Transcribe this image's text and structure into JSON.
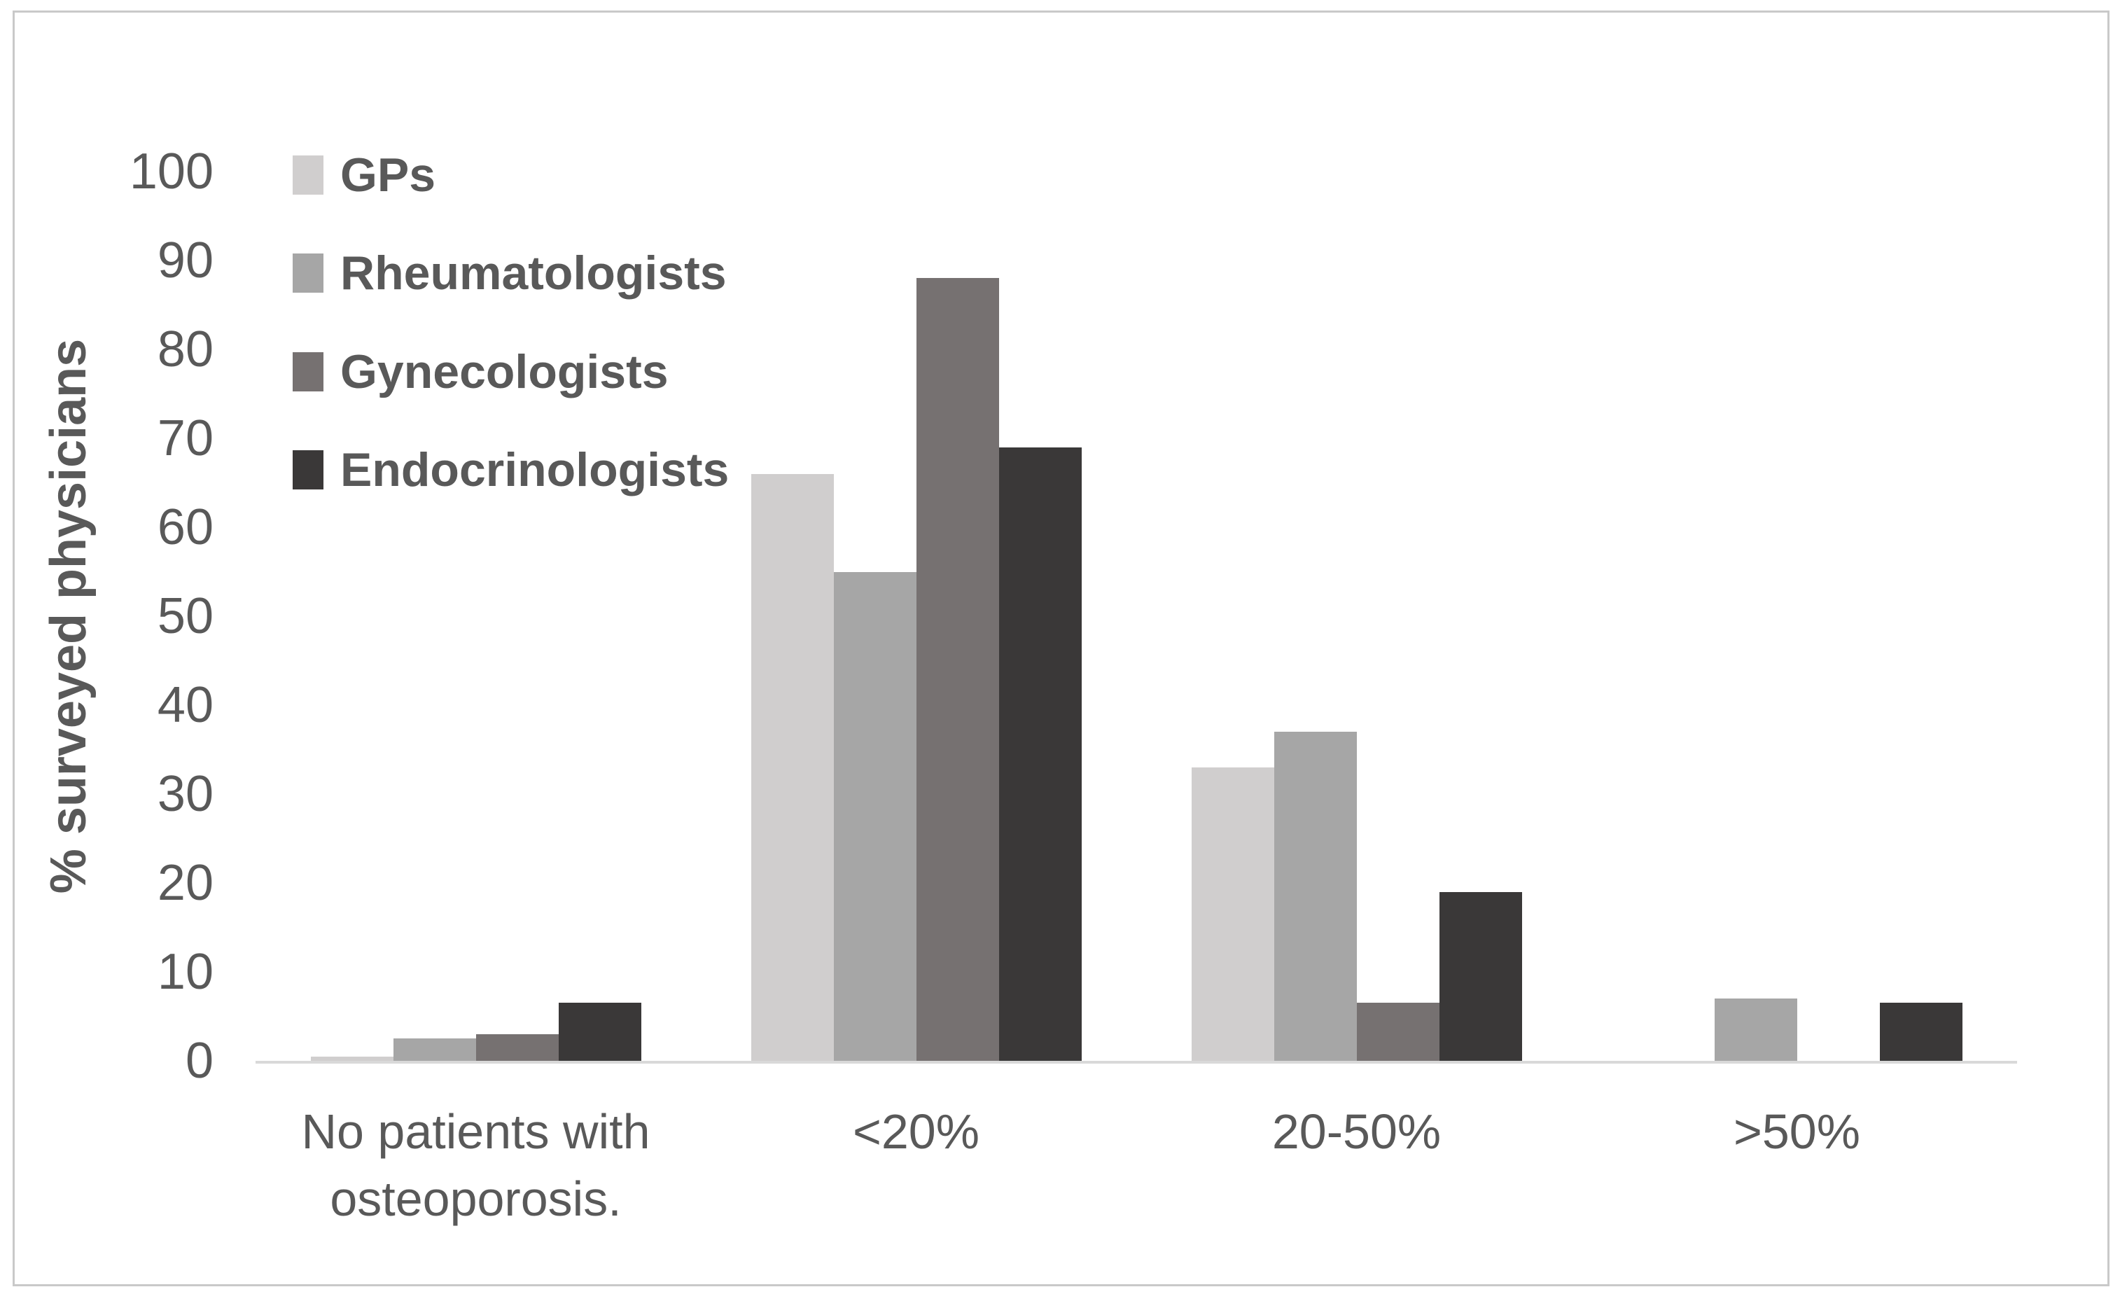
{
  "chart_data": {
    "type": "bar",
    "title": "",
    "xlabel": "",
    "ylabel": "% surveyed physicians",
    "ylim": [
      0,
      100
    ],
    "ytick_step": 10,
    "yticks": [
      0,
      10,
      20,
      30,
      40,
      50,
      60,
      70,
      80,
      90,
      100
    ],
    "grid": false,
    "legend_position": "top-left",
    "categories": [
      "No patients with osteoporosis.",
      "<20%",
      "20-50%",
      ">50%"
    ],
    "series": [
      {
        "name": "GPs",
        "color": "#D0CECE",
        "values": [
          0.5,
          66,
          33,
          0
        ]
      },
      {
        "name": "Rheumatologists",
        "color": "#A6A6A6",
        "values": [
          2.5,
          55,
          37,
          7
        ]
      },
      {
        "name": "Gynecologists",
        "color": "#767171",
        "values": [
          3,
          88,
          6.5,
          0
        ]
      },
      {
        "name": "Endocrinologists",
        "color": "#3A3838",
        "values": [
          6.5,
          69,
          19,
          6.5
        ]
      }
    ]
  },
  "colors": {
    "text": "#595959",
    "axis_line": "#D9D9D9",
    "frame_border": "#C9C9C9",
    "background": "#FFFFFF"
  }
}
